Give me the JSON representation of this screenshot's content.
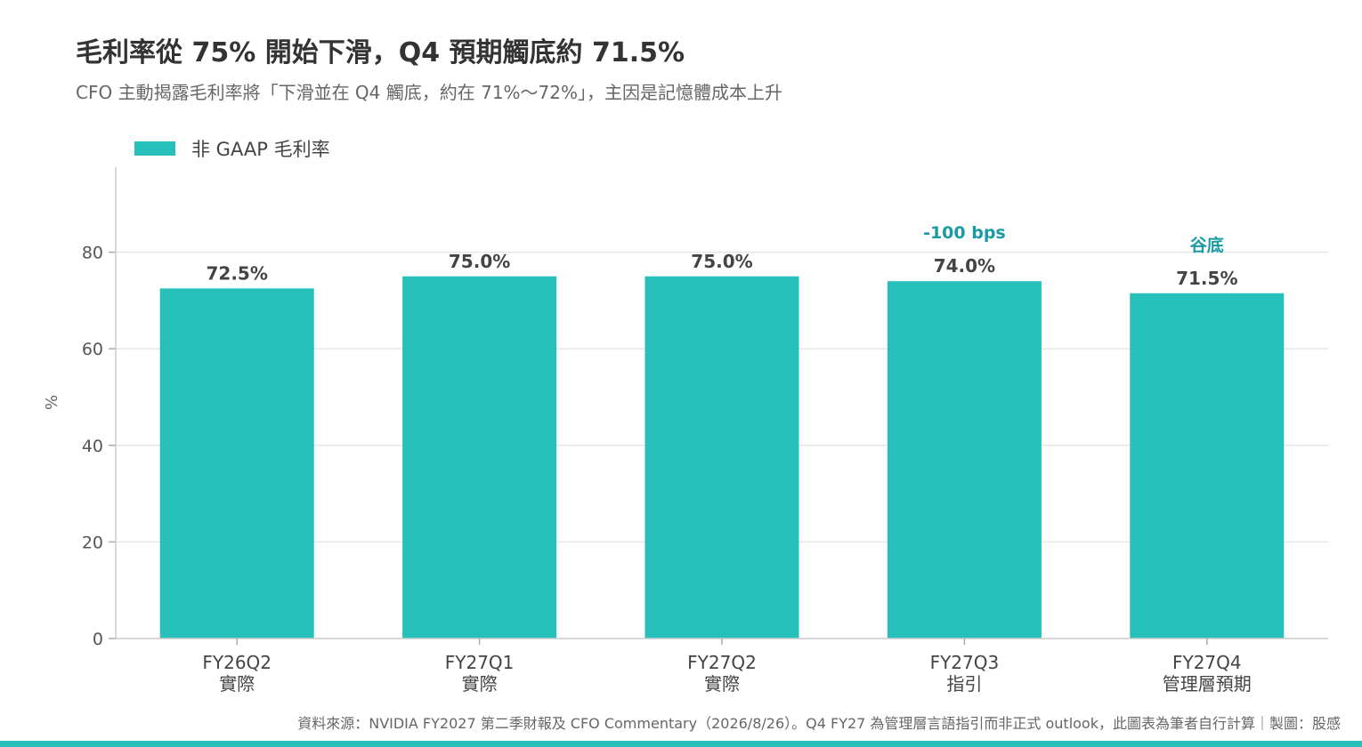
{
  "title": "毛利率從 75% 開始下滑，Q4 預期觸底約 71.5%",
  "subtitle": "CFO 主動揭露毛利率將「下滑並在 Q4 觸底，約在 71%～72%」，主因是記憶體成本上升",
  "source": "資料來源：NVIDIA FY2027 第二季財報及 CFO Commentary（2026/8/26）。Q4 FY27 為管理層言語指引而非正式 outlook，此圖表為筆者自行計算｜製圖：股感",
  "colors": {
    "bar": "#26bfb9",
    "note": "#1a9ba4",
    "grid": "#e6e6e6",
    "axis": "#cccccc",
    "bottom_bar": "#26bfb9"
  },
  "chart_data": {
    "type": "bar",
    "title": "毛利率從 75% 開始下滑，Q4 預期觸底約 71.5%",
    "ylabel": "%",
    "xlabel": "",
    "ylim": [
      0,
      100
    ],
    "yticks": [
      0,
      20,
      40,
      60,
      80
    ],
    "grid": true,
    "legend_position": "top-left",
    "categories": [
      [
        "FY26Q2",
        "實際"
      ],
      [
        "FY27Q1",
        "實際"
      ],
      [
        "FY27Q2",
        "實際"
      ],
      [
        "FY27Q3",
        "指引"
      ],
      [
        "FY27Q4",
        "管理層預期"
      ]
    ],
    "series": [
      {
        "name": "非 GAAP 毛利率",
        "values": [
          72.5,
          75.0,
          75.0,
          74.0,
          71.5
        ],
        "value_labels": [
          "72.5%",
          "75.0%",
          "75.0%",
          "74.0%",
          "71.5%"
        ]
      }
    ],
    "annotations": [
      {
        "category_index": 3,
        "text": "-100 bps"
      },
      {
        "category_index": 4,
        "text": "谷底"
      }
    ]
  }
}
